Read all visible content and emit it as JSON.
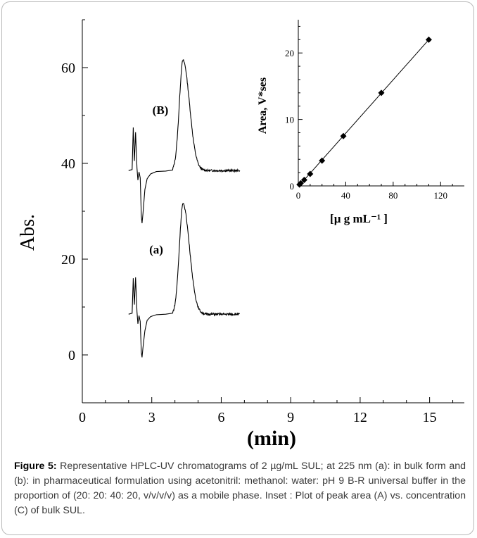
{
  "figure": {
    "caption_label": "Figure 5:",
    "caption_text": " Representative HPLC-UV chromatograms of 2 µg/mL SUL; at 225 nm (a): in bulk form and (b): in pharmaceutical formulation using acetonitril: methanol: water: pH 9 B-R universal buffer in the proportion of (20: 20: 40: 20, v/v/v/v) as a mobile phase. Inset : Plot of peak area (A) vs. concentration (C) of bulk SUL."
  },
  "chart_data": [
    {
      "type": "line",
      "xlabel": "(min)",
      "ylabel": "Abs.",
      "xlim": [
        0,
        16.5
      ],
      "ylim": [
        -10,
        70
      ],
      "xticks": [
        0,
        3,
        6,
        9,
        12,
        15
      ],
      "yticks": [
        0,
        20,
        40,
        60
      ],
      "grid": false,
      "annotations": [
        "(B)",
        "(a)"
      ],
      "series": [
        {
          "baseline": 38.5,
          "x_end": 6.8,
          "disturbance": [
            [
              2.0,
              38.5
            ],
            [
              2.15,
              38.7
            ],
            [
              2.2,
              47.5
            ],
            [
              2.25,
              40.5
            ],
            [
              2.3,
              46.5
            ],
            [
              2.36,
              39.0
            ],
            [
              2.4,
              36.5
            ],
            [
              2.45,
              38.2
            ],
            [
              2.5,
              37.0
            ],
            [
              2.55,
              29.0
            ],
            [
              2.58,
              27.5
            ],
            [
              2.62,
              29.5
            ],
            [
              2.7,
              34.5
            ],
            [
              2.8,
              36.8
            ],
            [
              2.95,
              37.8
            ],
            [
              3.2,
              38.3
            ],
            [
              3.6,
              38.4
            ],
            [
              3.9,
              38.6
            ]
          ],
          "peak": {
            "center": 4.35,
            "height": 61.5,
            "sigma_left": 0.16,
            "sigma_right": 0.28
          }
        },
        {
          "baseline": 8.5,
          "x_end": 6.8,
          "disturbance": [
            [
              2.0,
              8.5
            ],
            [
              2.15,
              8.7
            ],
            [
              2.2,
              16.0
            ],
            [
              2.25,
              10.5
            ],
            [
              2.3,
              16.2
            ],
            [
              2.36,
              9.0
            ],
            [
              2.4,
              6.5
            ],
            [
              2.45,
              8.2
            ],
            [
              2.5,
              7.0
            ],
            [
              2.55,
              0.5
            ],
            [
              2.58,
              -0.5
            ],
            [
              2.62,
              1.5
            ],
            [
              2.7,
              5.0
            ],
            [
              2.8,
              7.2
            ],
            [
              2.95,
              8.0
            ],
            [
              3.2,
              8.4
            ],
            [
              3.6,
              8.5
            ],
            [
              3.9,
              8.7
            ]
          ],
          "peak": {
            "center": 4.35,
            "height": 31.5,
            "sigma_left": 0.16,
            "sigma_right": 0.28
          }
        }
      ]
    },
    {
      "type": "scatter",
      "xlabel": "[µ g mL⁻¹ ]",
      "ylabel": "Area, V*ses",
      "xlim": [
        0,
        140
      ],
      "ylim": [
        0,
        25
      ],
      "xticks": [
        0,
        40,
        80,
        120
      ],
      "yticks": [
        0,
        10,
        20
      ],
      "fit_line": true,
      "x": [
        1,
        2,
        5,
        10,
        20,
        38,
        70,
        110
      ],
      "y": [
        0.2,
        0.4,
        0.9,
        1.8,
        3.8,
        7.5,
        14.0,
        22.0
      ]
    }
  ]
}
